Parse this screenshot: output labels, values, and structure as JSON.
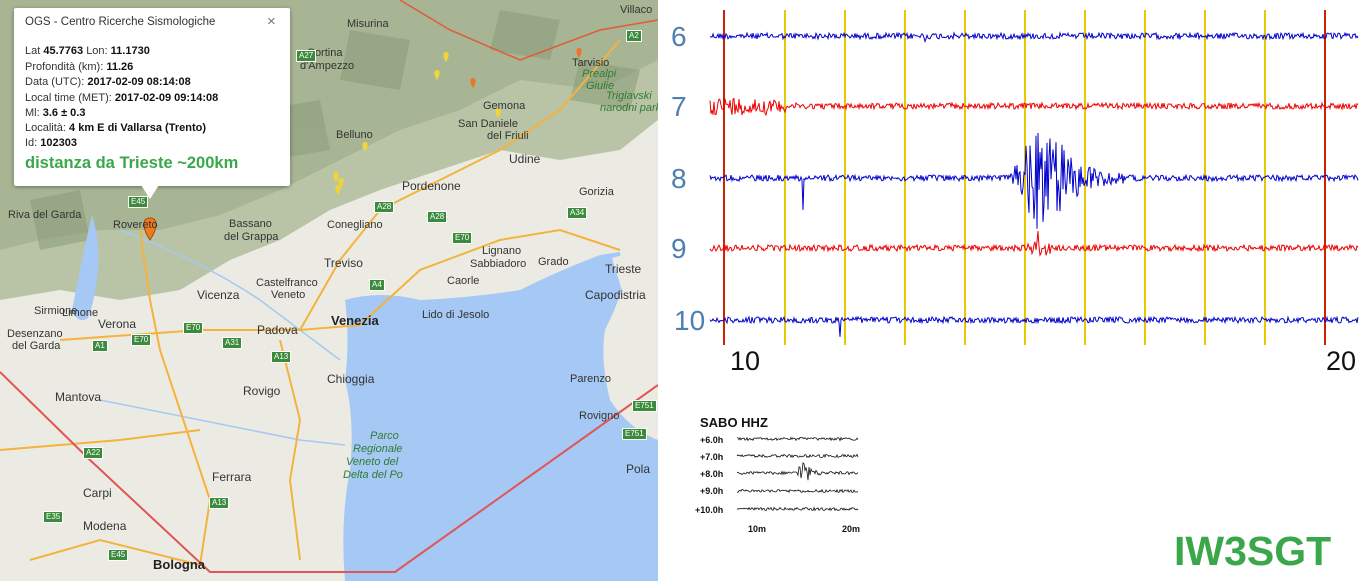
{
  "popup": {
    "title": "OGS - Centro Ricerche Sismologiche",
    "close": "×",
    "lat_label": "Lat",
    "lat": "45.7763",
    "lon_label": "Lon:",
    "lon": "11.1730",
    "depth_label": "Profondità (km):",
    "depth": "11.26",
    "date_label": "Data (UTC):",
    "date": "2017-02-09 08:14:08",
    "local_label": "Local time (MET):",
    "local": "2017-02-09 09:14:08",
    "ml_label": "Ml:",
    "ml": "3.6 ± 0.3",
    "loc_label": "Località:",
    "loc": "4 km E di Vallarsa (Trento)",
    "id_label": "Id:",
    "id": "102303",
    "distance": "distanza da Trieste ~200km"
  },
  "map": {
    "places": [
      {
        "name": "Misurina",
        "style": "small"
      },
      {
        "name": "Cortina",
        "style": "small"
      },
      {
        "name": "d'Ampezzo",
        "style": "small"
      },
      {
        "name": "Villaco",
        "style": "small"
      },
      {
        "name": "Tarvisio",
        "style": "small"
      },
      {
        "name": "Prealpi",
        "style": "green"
      },
      {
        "name": "Giulie",
        "style": "green"
      },
      {
        "name": "Triglavski",
        "style": "green"
      },
      {
        "name": "narodni park",
        "style": "green"
      },
      {
        "name": "Gemona",
        "style": "small"
      },
      {
        "name": "San Daniele",
        "style": "small"
      },
      {
        "name": "del Friuli",
        "style": "small"
      },
      {
        "name": "Udine",
        "style": "med"
      },
      {
        "name": "Belluno",
        "style": "small"
      },
      {
        "name": "Pordenone",
        "style": "med"
      },
      {
        "name": "Gorizia",
        "style": "small"
      },
      {
        "name": "Riva del Garda",
        "style": "small"
      },
      {
        "name": "Rovereto",
        "style": "small"
      },
      {
        "name": "Bassano",
        "style": "small"
      },
      {
        "name": "del Grappa",
        "style": "small"
      },
      {
        "name": "Conegliano",
        "style": "small"
      },
      {
        "name": "Treviso",
        "style": "med"
      },
      {
        "name": "Lignano",
        "style": "small"
      },
      {
        "name": "Sabbiadoro",
        "style": "small"
      },
      {
        "name": "Grado",
        "style": "small"
      },
      {
        "name": "Trieste",
        "style": "med"
      },
      {
        "name": "Capodistria",
        "style": "med"
      },
      {
        "name": "Castelfranco",
        "style": "small"
      },
      {
        "name": "Veneto",
        "style": "small"
      },
      {
        "name": "Caorle",
        "style": "small"
      },
      {
        "name": "Vicenza",
        "style": "med"
      },
      {
        "name": "Sirmione",
        "style": "small"
      },
      {
        "name": "Limone",
        "style": "small"
      },
      {
        "name": "Verona",
        "style": "med"
      },
      {
        "name": "Desenzano",
        "style": "small"
      },
      {
        "name": "del Garda",
        "style": "small"
      },
      {
        "name": "Padova",
        "style": "med"
      },
      {
        "name": "Venezia",
        "style": "big"
      },
      {
        "name": "Lido di Jesolo",
        "style": "small"
      },
      {
        "name": "Mantova",
        "style": "med"
      },
      {
        "name": "Chioggia",
        "style": "med"
      },
      {
        "name": "Rovigo",
        "style": "med"
      },
      {
        "name": "Parenzo",
        "style": "small"
      },
      {
        "name": "Rovigno",
        "style": "small"
      },
      {
        "name": "Parco",
        "style": "green"
      },
      {
        "name": "Regionale",
        "style": "green"
      },
      {
        "name": "Veneto del",
        "style": "green"
      },
      {
        "name": "Delta del Po",
        "style": "green"
      },
      {
        "name": "Pola",
        "style": "med"
      },
      {
        "name": "Carpi",
        "style": "med"
      },
      {
        "name": "Ferrara",
        "style": "med"
      },
      {
        "name": "Modena",
        "style": "med"
      },
      {
        "name": "Bologna",
        "style": "big"
      }
    ],
    "shields": [
      "A2",
      "A27",
      "A28",
      "A28",
      "A34",
      "E70",
      "E45",
      "A4",
      "E70",
      "A31",
      "A13",
      "E70",
      "A22",
      "E751",
      "E751",
      "A13",
      "E35",
      "E45",
      "A1"
    ]
  },
  "seismo": {
    "hours": [
      "6",
      "7",
      "8",
      "9",
      "10"
    ],
    "colors": [
      "#0000cc",
      "#ee0000",
      "#0000cc",
      "#ee0000",
      "#0000cc"
    ],
    "x_start": "10",
    "x_end": "20",
    "minor_gridline_color": "#e8c800",
    "major_gridline_color": "#cc2200"
  },
  "mini": {
    "title": "SABO HHZ",
    "labels": [
      "+6.0h",
      "+7.0h",
      "+8.0h",
      "+9.0h",
      "+10.0h"
    ],
    "x_labels": [
      "10m",
      "20m"
    ]
  },
  "watermark": "IW3SGT"
}
